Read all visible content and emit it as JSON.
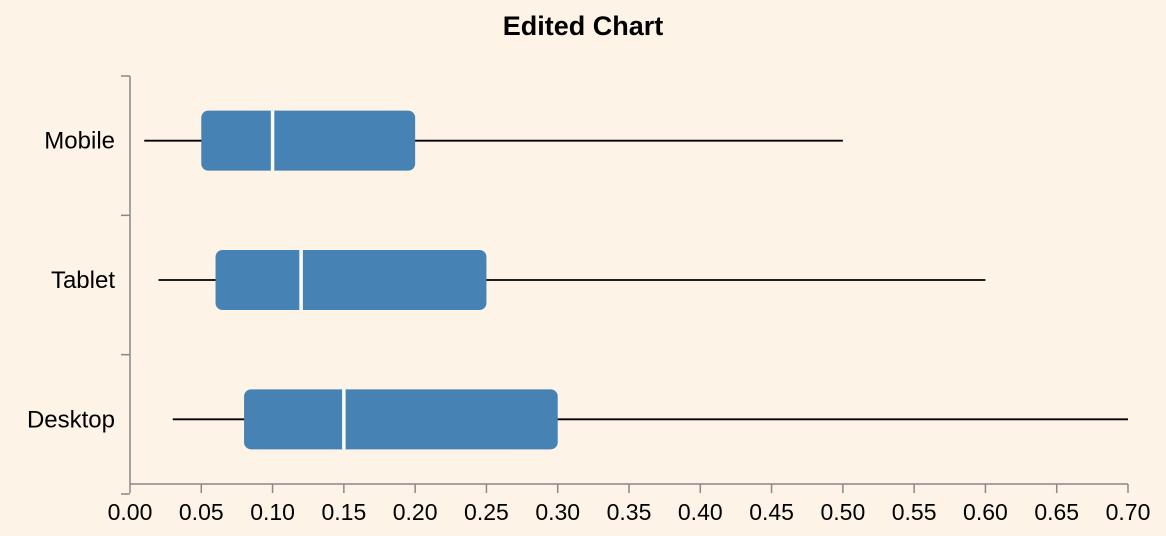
{
  "chart_data": {
    "type": "boxplot",
    "orientation": "horizontal",
    "title": "Edited Chart",
    "xlabel": "",
    "ylabel": "",
    "xlim": [
      0,
      0.7
    ],
    "x_ticks": [
      "0.00",
      "0.05",
      "0.10",
      "0.15",
      "0.20",
      "0.25",
      "0.30",
      "0.35",
      "0.40",
      "0.45",
      "0.50",
      "0.55",
      "0.60",
      "0.65",
      "0.70"
    ],
    "categories": [
      "Mobile",
      "Tablet",
      "Desktop"
    ],
    "series": [
      {
        "category": "Mobile",
        "min": 0.01,
        "q1": 0.05,
        "median": 0.1,
        "q3": 0.2,
        "max": 0.5
      },
      {
        "category": "Tablet",
        "min": 0.02,
        "q1": 0.06,
        "median": 0.12,
        "q3": 0.25,
        "max": 0.6
      },
      {
        "category": "Desktop",
        "min": 0.03,
        "q1": 0.08,
        "median": 0.15,
        "q3": 0.3,
        "max": 0.7
      }
    ],
    "grid": false,
    "colors": {
      "box": "#4682b4",
      "median": "#ffffff",
      "whisker": "#000000",
      "background": "#fdf3e6",
      "axis": "#888888"
    }
  }
}
